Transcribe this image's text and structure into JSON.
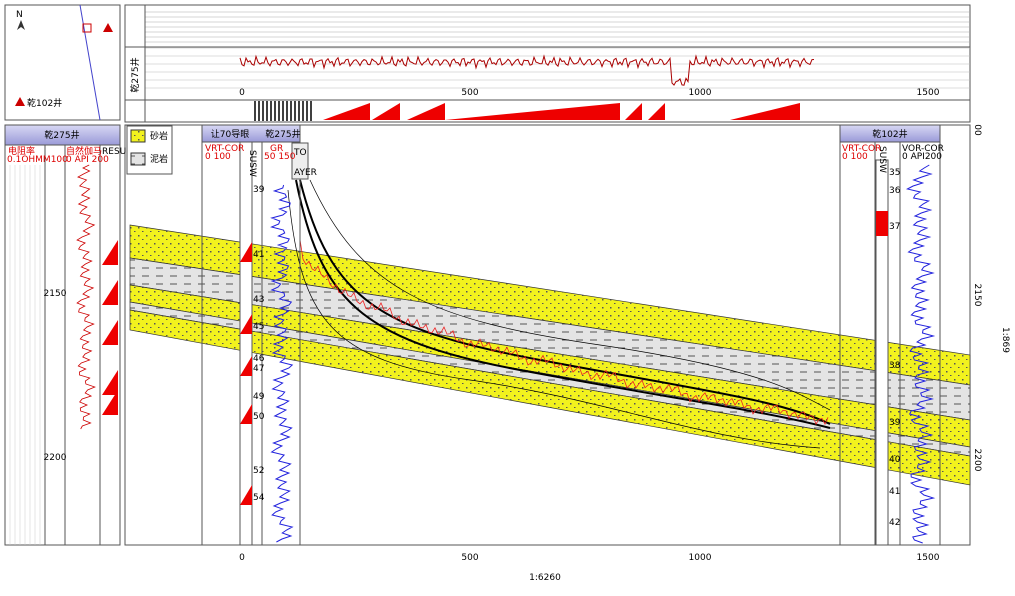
{
  "map": {
    "north": "N",
    "well": "乾102井"
  },
  "section_top": {
    "well": "乾275井",
    "axis": [
      "0",
      "500",
      "1000",
      "1500"
    ]
  },
  "left_well": {
    "title": "乾275井",
    "headers": [
      "电阻率",
      "自然伽马",
      "RESU"
    ],
    "ranges": [
      "0.1OHMM100",
      "0 API 200"
    ],
    "depths": [
      "2150",
      "2200"
    ]
  },
  "legend": [
    "砂岩",
    "泥岩"
  ],
  "well_r70": {
    "title": "让70导眼",
    "overlay": "乾275井",
    "headers": [
      "VRT-COR",
      "SUSW",
      "GR",
      "TO",
      "AYER"
    ],
    "ranges": [
      "0 100",
      "50 150"
    ],
    "layers": [
      "39",
      "41",
      "43",
      "45",
      "46",
      "47",
      "49",
      "50",
      "52",
      "54"
    ]
  },
  "well_q102": {
    "title": "乾102井",
    "headers": [
      "VRT-COR",
      "SUSW",
      "VOR-COR"
    ],
    "ranges": [
      "0 100",
      "0 API200"
    ],
    "layers": [
      "35",
      "36",
      "37",
      "38",
      "39",
      "40",
      "41",
      "42"
    ]
  },
  "main_axis": {
    "x": [
      "0",
      "500",
      "1000",
      "1500"
    ],
    "depths": [
      "00",
      "2150",
      "2200"
    ],
    "h_scale": "1:6260",
    "v_scale": "1:869"
  }
}
